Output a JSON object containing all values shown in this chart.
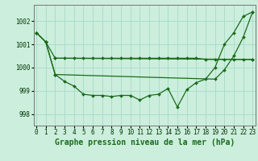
{
  "background_color": "#cceedd",
  "grid_color": "#aaddcc",
  "line_color": "#1a6b1a",
  "xlabel": "Graphe pression niveau de la mer (hPa)",
  "xlabel_fontsize": 7,
  "tick_fontsize": 5.5,
  "yticks": [
    998,
    999,
    1000,
    1001,
    1002
  ],
  "xticks": [
    0,
    1,
    2,
    3,
    4,
    5,
    6,
    7,
    8,
    9,
    10,
    11,
    12,
    13,
    14,
    15,
    16,
    17,
    18,
    19,
    20,
    21,
    22,
    23
  ],
  "ylim": [
    997.5,
    1002.7
  ],
  "xlim": [
    -0.3,
    23.3
  ],
  "series1_x": [
    0,
    1,
    2,
    23
  ],
  "series1_y": [
    1001.5,
    1001.1,
    1000.4,
    1000.35
  ],
  "series_flat_x": [
    2,
    3,
    4,
    5,
    6,
    7,
    8,
    9,
    10,
    11,
    12,
    13,
    14,
    15,
    16,
    17,
    18,
    19,
    20,
    21,
    22,
    23
  ],
  "series_flat_y": [
    1000.4,
    1000.4,
    1000.4,
    1000.4,
    1000.4,
    1000.4,
    1000.4,
    1000.4,
    1000.4,
    1000.4,
    1000.4,
    1000.4,
    1000.4,
    1000.4,
    1000.4,
    1000.4,
    1000.35,
    1000.35,
    1000.35,
    1000.35,
    1000.35,
    1000.35
  ],
  "series_curve": [
    1001.5,
    1001.1,
    999.7,
    999.4,
    999.2,
    998.85,
    998.8,
    998.8,
    998.75,
    998.8,
    998.8,
    998.6,
    998.8,
    998.85,
    999.1,
    998.3,
    999.05,
    999.35,
    999.5,
    1000.0,
    1001.0,
    1001.5,
    1002.2,
    1002.4
  ],
  "series_diag_x": [
    0,
    1,
    2,
    19,
    20,
    21,
    22,
    23
  ],
  "series_diag_y": [
    1001.5,
    1001.1,
    999.7,
    999.5,
    999.9,
    1000.5,
    1001.3,
    1002.4
  ]
}
